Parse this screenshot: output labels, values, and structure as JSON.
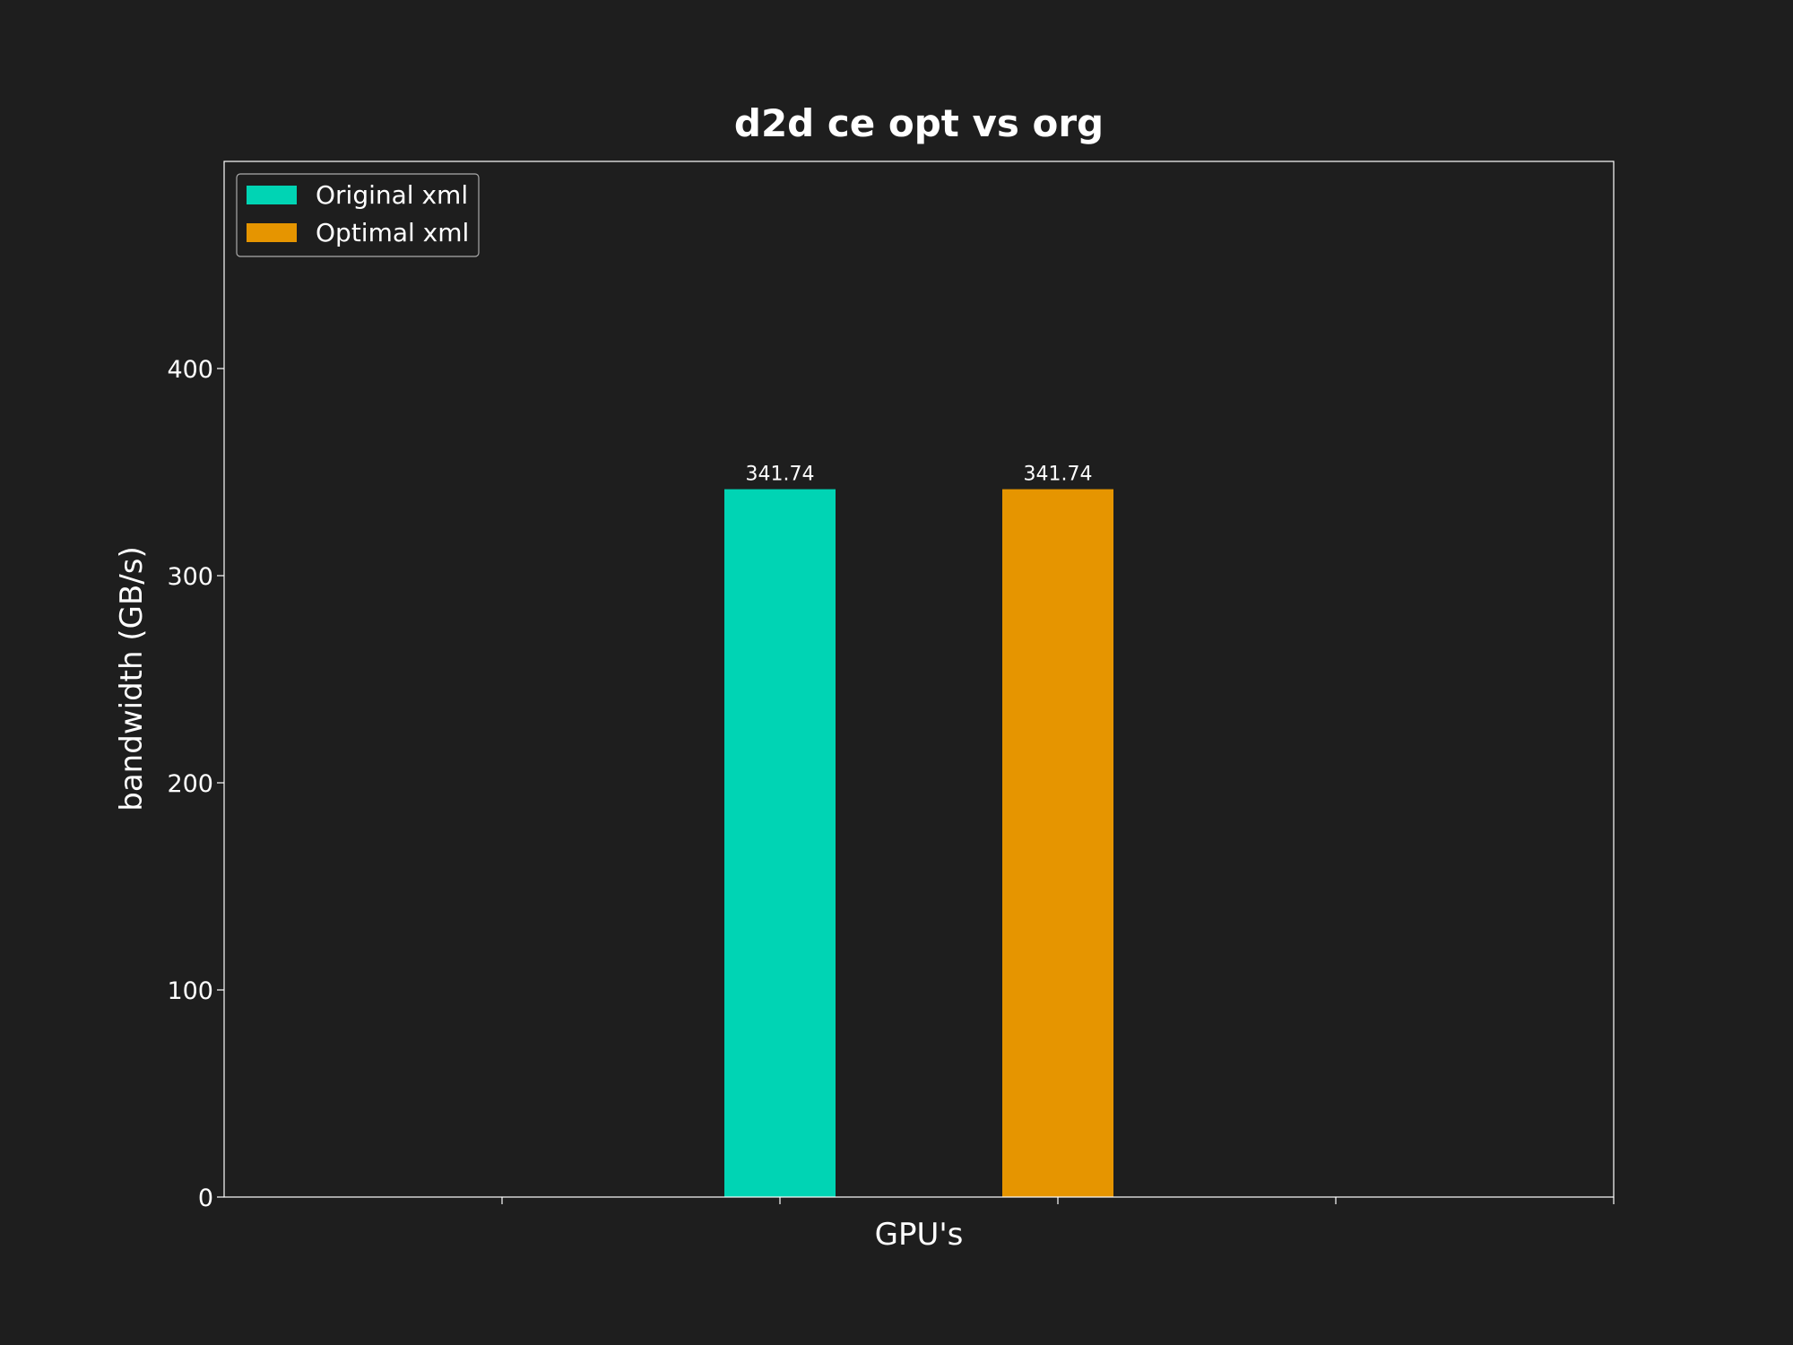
{
  "chart_data": {
    "type": "bar",
    "title": "d2d ce opt vs org",
    "xlabel": "GPU's",
    "ylabel": "bandwidth (GB/s)",
    "categories": [
      ""
    ],
    "series": [
      {
        "name": "Original xml",
        "values": [
          341.74
        ],
        "labels": [
          "341.74"
        ],
        "color": "#00d4b4"
      },
      {
        "name": "Optimal xml",
        "values": [
          341.74
        ],
        "labels": [
          "341.74"
        ],
        "color": "#e69500"
      }
    ],
    "ylim": [
      0,
      500
    ],
    "yticks": [
      0,
      100,
      200,
      300,
      400
    ],
    "ytick_labels": [
      "0",
      "100",
      "200",
      "300",
      "400"
    ],
    "xlim": [
      -1,
      4
    ],
    "xticks": [
      0,
      1,
      2,
      3,
      4
    ],
    "bar_positions": [
      1.0,
      2.0
    ],
    "bar_width": 0.4,
    "grid": false,
    "legend_position": "top-left",
    "background": "#1e1e1e",
    "text_color": "#ffffff",
    "axis_color": "#ffffff"
  }
}
